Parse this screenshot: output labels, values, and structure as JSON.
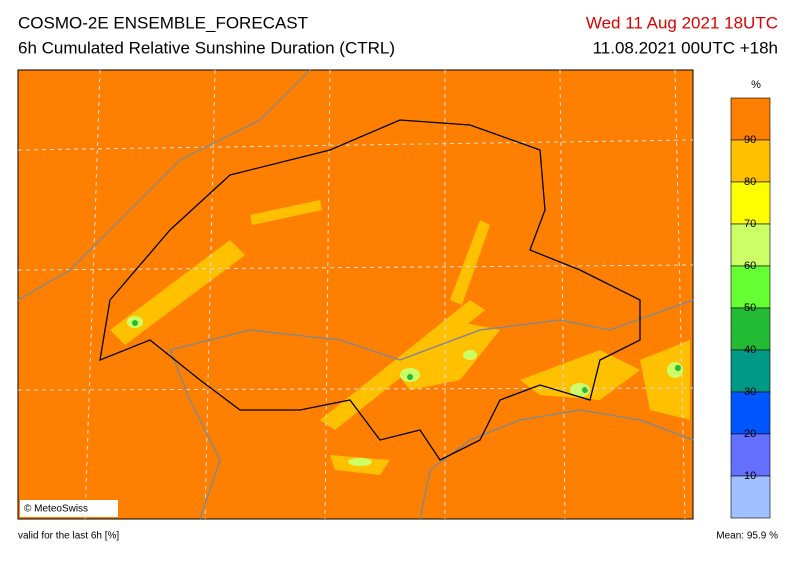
{
  "header": {
    "title": "COSMO-2E ENSEMBLE_FORECAST",
    "subtitle": "6h Cumulated Relative Sunshine Duration (CTRL)",
    "valid_time": "Wed 11 Aug 2021 18UTC",
    "run": "11.08.2021 00UTC +18h"
  },
  "colorbar": {
    "unit": "%",
    "ticks": [
      90,
      80,
      70,
      60,
      50,
      40,
      30,
      20,
      10
    ],
    "colors": [
      "#ff8000",
      "#ffc000",
      "#ffff00",
      "#ccff66",
      "#66ff33",
      "#22bb33",
      "#009988",
      "#0055ff",
      "#6670ff",
      "#a0c0ff"
    ]
  },
  "map": {
    "credit": "© MeteoSwiss"
  },
  "footer": {
    "note": "valid for the last 6h [%]",
    "mean": "Mean:  95.9 %"
  }
}
